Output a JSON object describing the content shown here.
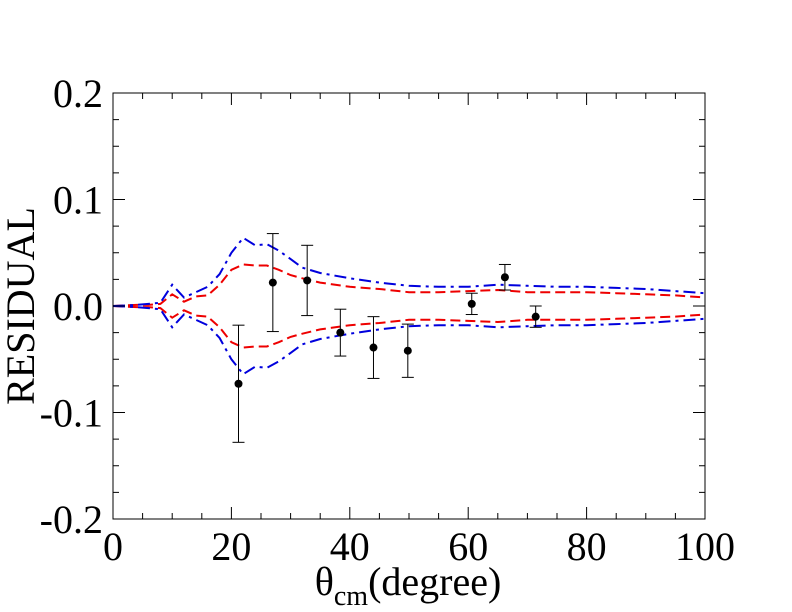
{
  "chart_data": {
    "type": "scatter",
    "title": "",
    "xlabel": {
      "symbol": "θ",
      "subscript": "cm",
      "rest": "(degree)"
    },
    "ylabel": "RESIDUAL",
    "xlim": [
      0,
      100
    ],
    "ylim": [
      -0.2,
      0.2
    ],
    "x_ticks": [
      0,
      20,
      40,
      60,
      80,
      100
    ],
    "x_tick_labels": [
      "0",
      "20",
      "40",
      "60",
      "80",
      "100"
    ],
    "y_ticks": [
      -0.2,
      -0.1,
      0.0,
      0.1,
      0.2
    ],
    "y_tick_labels": [
      "-0.2",
      "-0.1",
      "0.0",
      "0.1",
      "0.2"
    ],
    "grid": false,
    "data_points": {
      "name": "data",
      "color": "#000000",
      "points": [
        {
          "x": 21.2,
          "y": -0.073,
          "err": 0.055
        },
        {
          "x": 27.0,
          "y": 0.022,
          "err": 0.046
        },
        {
          "x": 32.8,
          "y": 0.024,
          "err": 0.033
        },
        {
          "x": 38.4,
          "y": -0.025,
          "err": 0.022
        },
        {
          "x": 44.0,
          "y": -0.039,
          "err": 0.029
        },
        {
          "x": 49.8,
          "y": -0.042,
          "err": 0.025
        },
        {
          "x": 60.6,
          "y": 0.002,
          "err": 0.01
        },
        {
          "x": 66.2,
          "y": 0.027,
          "err": 0.012
        },
        {
          "x": 71.4,
          "y": -0.01,
          "err": 0.01
        }
      ]
    },
    "series": [
      {
        "name": "red-band",
        "color": "#ee0000",
        "style": "dashed",
        "x": [
          0,
          4,
          6,
          8,
          10,
          12,
          14,
          16,
          18,
          20,
          22,
          24,
          26,
          28,
          30,
          32,
          35,
          40,
          45,
          50,
          55,
          60,
          65,
          70,
          75,
          80,
          85,
          90,
          95,
          100
        ],
        "values": [
          0,
          0.001,
          0.001,
          0.002,
          0.011,
          0.004,
          0.009,
          0.01,
          0.02,
          0.034,
          0.039,
          0.038,
          0.038,
          0.034,
          0.029,
          0.026,
          0.022,
          0.018,
          0.016,
          0.013,
          0.013,
          0.014,
          0.015,
          0.013,
          0.013,
          0.013,
          0.012,
          0.011,
          0.01,
          0.008
        ]
      },
      {
        "name": "blue-band",
        "color": "#0000dd",
        "style": "dash-dot",
        "x": [
          0,
          4,
          6,
          8,
          10,
          12,
          14,
          16,
          18,
          20,
          22,
          24,
          26,
          28,
          30,
          32,
          35,
          40,
          45,
          50,
          55,
          60,
          65,
          70,
          75,
          80,
          85,
          90,
          95,
          100
        ],
        "values": [
          0,
          0.001,
          0.002,
          0.003,
          0.02,
          0.008,
          0.013,
          0.018,
          0.03,
          0.05,
          0.064,
          0.057,
          0.058,
          0.052,
          0.044,
          0.036,
          0.031,
          0.026,
          0.022,
          0.019,
          0.018,
          0.018,
          0.02,
          0.019,
          0.018,
          0.018,
          0.017,
          0.016,
          0.014,
          0.012
        ]
      }
    ]
  }
}
